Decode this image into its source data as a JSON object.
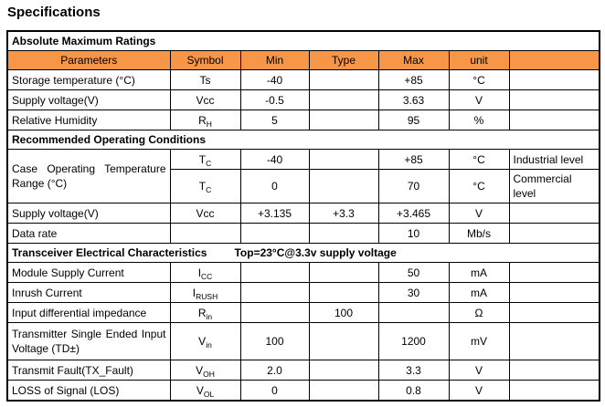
{
  "page_title": "Specifications",
  "colors": {
    "header_fill": "#F79646",
    "border": "#000000",
    "text": "#000000"
  },
  "table": {
    "rows": [
      {
        "kind": "section",
        "label": "Absolute Maximum Ratings"
      },
      {
        "kind": "colheader",
        "cells": [
          "Parameters",
          "Symbol",
          "Min",
          "Type",
          "Max",
          "unit",
          ""
        ]
      },
      {
        "kind": "data",
        "param": "Storage temperature (°C)",
        "sym": "Ts",
        "sub": "",
        "min": "-40",
        "typ": "",
        "max": "+85",
        "unit": "°C",
        "note": ""
      },
      {
        "kind": "data",
        "param": "Supply voltage(V)",
        "sym": "Vcc",
        "sub": "",
        "min": "-0.5",
        "typ": "",
        "max": "3.63",
        "unit": "V",
        "note": ""
      },
      {
        "kind": "data",
        "param": "Relative Humidity",
        "sym": "R",
        "sub": "H",
        "min": "5",
        "typ": "",
        "max": "95",
        "unit": "%",
        "note": ""
      },
      {
        "kind": "section",
        "label": "Recommended Operating Conditions"
      },
      {
        "kind": "data",
        "param": "Case Operating Temperature Range (°C)",
        "param_rowspan": 2,
        "justify": true,
        "sym": "T",
        "sub": "C",
        "min": "-40",
        "typ": "",
        "max": "+85",
        "unit": "°C",
        "note": "Industrial level"
      },
      {
        "kind": "data",
        "param": null,
        "sym": "T",
        "sub": "C",
        "min": "0",
        "typ": "",
        "max": "70",
        "unit": "°C",
        "note": "Commercial level",
        "tall": true
      },
      {
        "kind": "data",
        "param": "Supply voltage(V)",
        "sym": "Vcc",
        "sub": "",
        "min": "+3.135",
        "typ": "+3.3",
        "max": "+3.465",
        "unit": "V",
        "note": ""
      },
      {
        "kind": "data",
        "param": "Data rate",
        "sym": "",
        "sub": "",
        "min": "",
        "typ": "",
        "max": "10",
        "unit": "Mb/s",
        "note": ""
      },
      {
        "kind": "section",
        "label": "Transceiver Electrical Characteristics",
        "label2": "Top=23°C@3.3v supply voltage"
      },
      {
        "kind": "data",
        "param": "Module Supply Current",
        "sym": "I",
        "sub": "CC",
        "min": "",
        "typ": "",
        "max": "50",
        "unit": "mA",
        "note": ""
      },
      {
        "kind": "data",
        "param": "Inrush Current",
        "sym": "I",
        "sub": "RUSH",
        "min": "",
        "typ": "",
        "max": "30",
        "unit": "mA",
        "note": ""
      },
      {
        "kind": "data",
        "param": "Input differential impedance",
        "sym": "R",
        "sub": "in",
        "min": "",
        "typ": "100",
        "max": "",
        "unit": "Ω",
        "note": ""
      },
      {
        "kind": "data",
        "param": "Transmitter Single Ended Input Voltage (TD±)",
        "justify": true,
        "sym": "V",
        "sub": "in",
        "min": "100",
        "typ": "",
        "max": "1200",
        "unit": "mV",
        "note": "",
        "tall": true
      },
      {
        "kind": "data",
        "param": "Transmit Fault(TX_Fault)",
        "sym": "V",
        "sub": "OH",
        "min": "2.0",
        "typ": "",
        "max": "3.3",
        "unit": "V",
        "note": ""
      },
      {
        "kind": "data",
        "param": "LOSS of Signal (LOS)",
        "sym": "V",
        "sub": "OL",
        "min": "0",
        "typ": "",
        "max": "0.8",
        "unit": "V",
        "note": ""
      }
    ]
  }
}
